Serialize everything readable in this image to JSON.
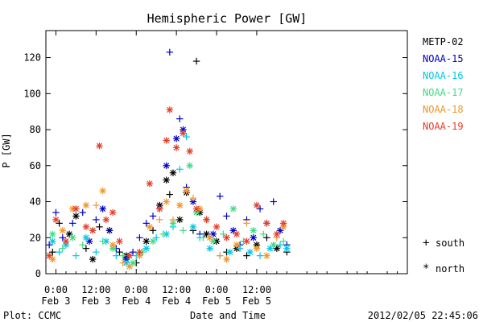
{
  "chart_data": {
    "type": "scatter",
    "title": "Hemispheric Power [GW]",
    "ylabel": "P [GW]",
    "xlabel": "Date and Time",
    "ylim": [
      0,
      135
    ],
    "yticks": [
      0,
      20,
      40,
      60,
      80,
      100,
      120
    ],
    "xlim": [
      -3,
      105
    ],
    "x_unit": "hours since 2012-02-03 00:00",
    "x_ticks": [
      {
        "x": 0,
        "time": "0:00",
        "date": "Feb 3"
      },
      {
        "x": 12,
        "time": "12:00",
        "date": "Feb 3"
      },
      {
        "x": 24,
        "time": "0:00",
        "date": "Feb 4"
      },
      {
        "x": 36,
        "time": "12:00",
        "date": "Feb 4"
      },
      {
        "x": 48,
        "time": "0:00",
        "date": "Feb 5"
      },
      {
        "x": 60,
        "time": "12:00",
        "date": "Feb 5"
      }
    ],
    "legend_placement": "right",
    "marker_legend": [
      {
        "symbol": "+",
        "label": "south"
      },
      {
        "symbol": "*",
        "label": "north"
      }
    ],
    "series": [
      {
        "name": "METP-02",
        "color": "#000000",
        "points": [
          [
            -1,
            12,
            "+"
          ],
          [
            1,
            28,
            "+"
          ],
          [
            4,
            22,
            "*"
          ],
          [
            6,
            32,
            "*"
          ],
          [
            9,
            14,
            "+"
          ],
          [
            11,
            8,
            "*"
          ],
          [
            13,
            26,
            "+"
          ],
          [
            16,
            24,
            "*"
          ],
          [
            19,
            12,
            "+"
          ],
          [
            21,
            10,
            "*"
          ],
          [
            24,
            6,
            "+"
          ],
          [
            27,
            18,
            "*"
          ],
          [
            29,
            24,
            "+"
          ],
          [
            31,
            38,
            "*"
          ],
          [
            33,
            52,
            "*"
          ],
          [
            34,
            44,
            "+"
          ],
          [
            35,
            56,
            "*"
          ],
          [
            37,
            30,
            "*"
          ],
          [
            39,
            45,
            "*"
          ],
          [
            41,
            24,
            "+"
          ],
          [
            42,
            118,
            "+"
          ],
          [
            43,
            34,
            "*"
          ],
          [
            45,
            22,
            "*"
          ],
          [
            48,
            18,
            "*"
          ],
          [
            51,
            12,
            "+"
          ],
          [
            54,
            14,
            "*"
          ],
          [
            57,
            10,
            "+"
          ],
          [
            60,
            16,
            "*"
          ],
          [
            63,
            20,
            "+"
          ],
          [
            66,
            14,
            "*"
          ],
          [
            69,
            12,
            "+"
          ]
        ]
      },
      {
        "name": "NOAA-15",
        "color": "#0000c8",
        "points": [
          [
            -2,
            16,
            "+"
          ],
          [
            0,
            34,
            "+"
          ],
          [
            2,
            20,
            "+"
          ],
          [
            5,
            28,
            "+"
          ],
          [
            8,
            34,
            "+"
          ],
          [
            10,
            18,
            "*"
          ],
          [
            12,
            30,
            "+"
          ],
          [
            14,
            36,
            "*"
          ],
          [
            16,
            24,
            "+"
          ],
          [
            18,
            14,
            "+"
          ],
          [
            21,
            8,
            "*"
          ],
          [
            23,
            12,
            "+"
          ],
          [
            25,
            20,
            "+"
          ],
          [
            27,
            28,
            "+"
          ],
          [
            29,
            32,
            "+"
          ],
          [
            31,
            36,
            "+"
          ],
          [
            33,
            60,
            "*"
          ],
          [
            34,
            123,
            "+"
          ],
          [
            36,
            75,
            "*"
          ],
          [
            37,
            86,
            "+"
          ],
          [
            38,
            80,
            "*"
          ],
          [
            39,
            48,
            "+"
          ],
          [
            41,
            40,
            "*"
          ],
          [
            43,
            22,
            "+"
          ],
          [
            45,
            30,
            "+"
          ],
          [
            47,
            22,
            "*"
          ],
          [
            49,
            43,
            "+"
          ],
          [
            51,
            32,
            "+"
          ],
          [
            53,
            24,
            "*"
          ],
          [
            55,
            16,
            "+"
          ],
          [
            57,
            30,
            "+"
          ],
          [
            59,
            20,
            "*"
          ],
          [
            61,
            36,
            "+"
          ],
          [
            63,
            28,
            "+"
          ],
          [
            65,
            40,
            "+"
          ],
          [
            67,
            24,
            "*"
          ],
          [
            69,
            16,
            "+"
          ]
        ]
      },
      {
        "name": "NOAA-16",
        "color": "#00c8e6",
        "points": [
          [
            -1,
            18,
            "*"
          ],
          [
            1,
            12,
            "+"
          ],
          [
            3,
            16,
            "*"
          ],
          [
            6,
            10,
            "+"
          ],
          [
            9,
            20,
            "*"
          ],
          [
            12,
            12,
            "+"
          ],
          [
            15,
            18,
            "*"
          ],
          [
            18,
            10,
            "+"
          ],
          [
            21,
            6,
            "*"
          ],
          [
            24,
            10,
            "+"
          ],
          [
            27,
            14,
            "*"
          ],
          [
            30,
            20,
            "+"
          ],
          [
            33,
            22,
            "*"
          ],
          [
            35,
            26,
            "+"
          ],
          [
            37,
            58,
            "+"
          ],
          [
            39,
            76,
            "+"
          ],
          [
            41,
            26,
            "*"
          ],
          [
            43,
            20,
            "+"
          ],
          [
            46,
            14,
            "*"
          ],
          [
            49,
            10,
            "+"
          ],
          [
            52,
            12,
            "*"
          ],
          [
            55,
            14,
            "+"
          ],
          [
            58,
            12,
            "*"
          ],
          [
            61,
            10,
            "+"
          ],
          [
            64,
            14,
            "*"
          ],
          [
            67,
            16,
            "+"
          ],
          [
            69,
            14,
            "*"
          ]
        ]
      },
      {
        "name": "NOAA-17",
        "color": "#3cdc82",
        "points": [
          [
            -1,
            22,
            "*"
          ],
          [
            2,
            14,
            "+"
          ],
          [
            5,
            20,
            "*"
          ],
          [
            8,
            16,
            "+"
          ],
          [
            11,
            24,
            "*"
          ],
          [
            14,
            18,
            "+"
          ],
          [
            17,
            14,
            "*"
          ],
          [
            20,
            10,
            "+"
          ],
          [
            23,
            6,
            "*"
          ],
          [
            26,
            12,
            "+"
          ],
          [
            29,
            18,
            "*"
          ],
          [
            32,
            22,
            "+"
          ],
          [
            35,
            28,
            "*"
          ],
          [
            38,
            24,
            "+"
          ],
          [
            40,
            60,
            "*"
          ],
          [
            42,
            34,
            "*"
          ],
          [
            44,
            20,
            "+"
          ],
          [
            47,
            18,
            "*"
          ],
          [
            50,
            22,
            "+"
          ],
          [
            53,
            36,
            "*"
          ],
          [
            56,
            18,
            "+"
          ],
          [
            59,
            24,
            "*"
          ],
          [
            62,
            22,
            "+"
          ],
          [
            65,
            16,
            "*"
          ],
          [
            68,
            18,
            "+"
          ]
        ]
      },
      {
        "name": "NOAA-18",
        "color": "#f0962c",
        "points": [
          [
            -1,
            8,
            "*"
          ],
          [
            2,
            24,
            "*"
          ],
          [
            5,
            36,
            "*"
          ],
          [
            9,
            38,
            "*"
          ],
          [
            12,
            38,
            "+"
          ],
          [
            14,
            46,
            "*"
          ],
          [
            17,
            16,
            "*"
          ],
          [
            20,
            6,
            "+"
          ],
          [
            22,
            4,
            "*"
          ],
          [
            25,
            10,
            "*"
          ],
          [
            28,
            26,
            "*"
          ],
          [
            31,
            30,
            "+"
          ],
          [
            33,
            40,
            "*"
          ],
          [
            35,
            30,
            "+"
          ],
          [
            37,
            38,
            "*"
          ],
          [
            39,
            46,
            "*"
          ],
          [
            41,
            42,
            "+"
          ],
          [
            43,
            36,
            "*"
          ],
          [
            46,
            20,
            "*"
          ],
          [
            49,
            10,
            "+"
          ],
          [
            51,
            8,
            "*"
          ],
          [
            54,
            16,
            "*"
          ],
          [
            57,
            28,
            "+"
          ],
          [
            60,
            14,
            "*"
          ],
          [
            63,
            10,
            "*"
          ],
          [
            66,
            20,
            "+"
          ],
          [
            68,
            26,
            "*"
          ]
        ]
      },
      {
        "name": "NOAA-19",
        "color": "#e63c28",
        "points": [
          [
            -2,
            10,
            "*"
          ],
          [
            0,
            30,
            "*"
          ],
          [
            3,
            18,
            "*"
          ],
          [
            6,
            36,
            "*"
          ],
          [
            9,
            26,
            "*"
          ],
          [
            11,
            24,
            "*"
          ],
          [
            13,
            71,
            "*"
          ],
          [
            15,
            30,
            "*"
          ],
          [
            17,
            34,
            "*"
          ],
          [
            19,
            18,
            "*"
          ],
          [
            22,
            10,
            "*"
          ],
          [
            25,
            12,
            "*"
          ],
          [
            28,
            50,
            "*"
          ],
          [
            31,
            36,
            "*"
          ],
          [
            33,
            74,
            "*"
          ],
          [
            34,
            91,
            "*"
          ],
          [
            36,
            70,
            "*"
          ],
          [
            38,
            78,
            "*"
          ],
          [
            40,
            68,
            "*"
          ],
          [
            42,
            36,
            "*"
          ],
          [
            45,
            30,
            "*"
          ],
          [
            48,
            26,
            "*"
          ],
          [
            51,
            20,
            "*"
          ],
          [
            54,
            22,
            "*"
          ],
          [
            57,
            18,
            "*"
          ],
          [
            60,
            38,
            "*"
          ],
          [
            63,
            28,
            "*"
          ],
          [
            66,
            22,
            "*"
          ],
          [
            68,
            28,
            "*"
          ]
        ]
      }
    ]
  },
  "footer": {
    "plot_source": "Plot: CCMC",
    "timestamp": "2012/02/05 22:45:06"
  }
}
